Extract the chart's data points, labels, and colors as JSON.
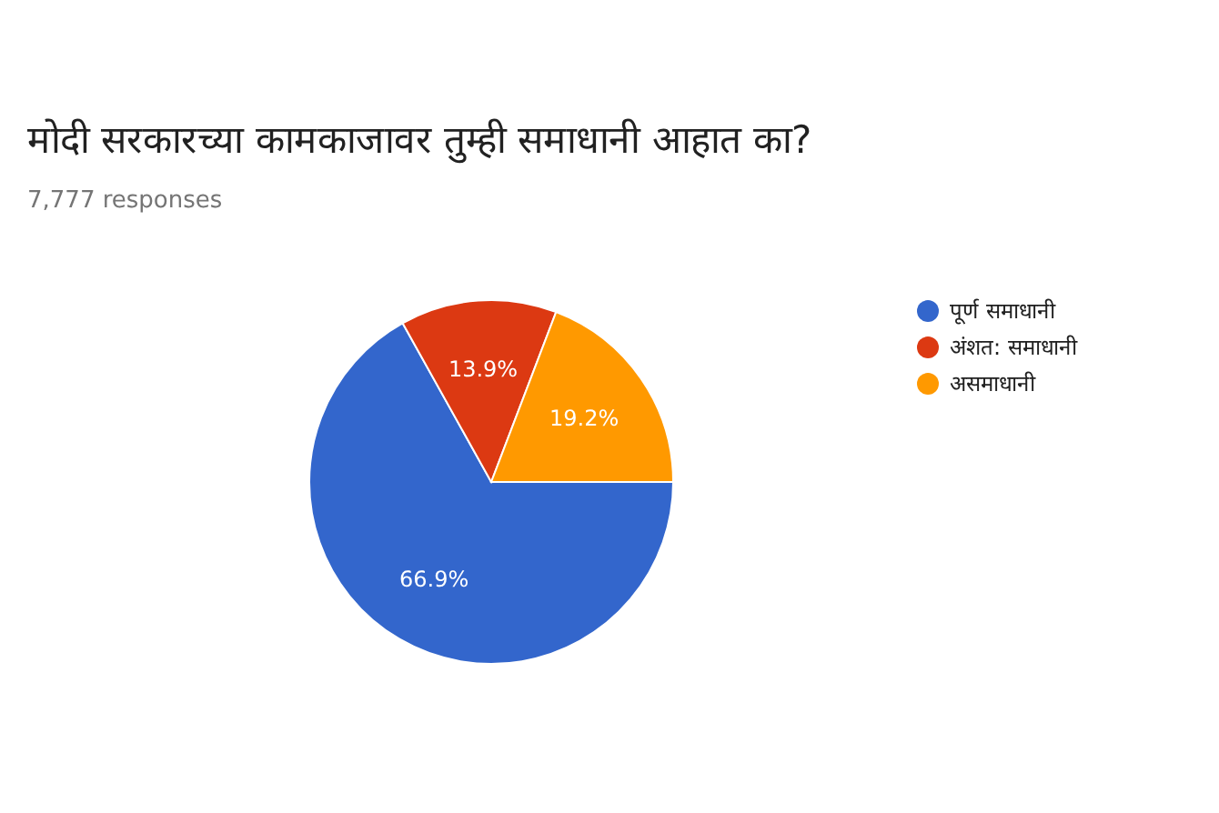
{
  "chart_data": {
    "type": "pie",
    "title": "मोदी सरकारच्या कामकाजावर तुम्ही समाधानी आहात का?",
    "subtitle": "7,777 responses",
    "categories": [
      "पूर्ण समाधानी",
      "अंशत: समाधानी",
      "असमाधानी"
    ],
    "values": [
      66.9,
      13.9,
      19.2
    ],
    "colors": [
      "#3366cc",
      "#dc3912",
      "#ff9900"
    ],
    "value_labels": [
      "66.9%",
      "13.9%",
      "19.2%"
    ],
    "legend": "right"
  }
}
